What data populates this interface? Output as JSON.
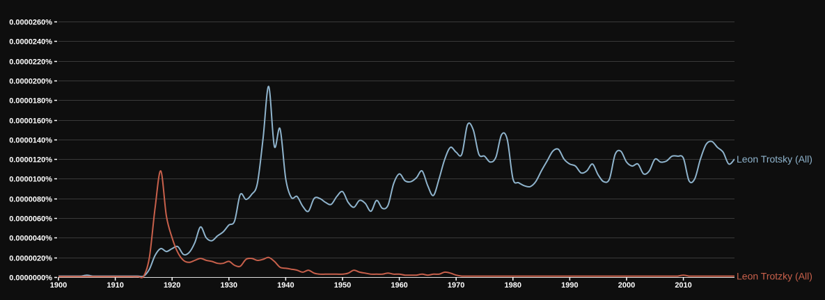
{
  "chart_data": {
    "type": "line",
    "title": "",
    "xlabel": "",
    "ylabel": "",
    "value_unit": "1e-7 percent",
    "xlim": [
      1900,
      2019
    ],
    "ylim": [
      0,
      260
    ],
    "y_tick_values": [
      0,
      20,
      40,
      60,
      80,
      100,
      120,
      140,
      160,
      180,
      200,
      220,
      240,
      260
    ],
    "y_tick_labels": [
      "0.0000000%",
      "0.0000020%",
      "0.0000040%",
      "0.0000060%",
      "0.0000080%",
      "0.0000100%",
      "0.0000120%",
      "0.0000140%",
      "0.0000160%",
      "0.0000180%",
      "0.0000200%",
      "0.0000220%",
      "0.0000240%",
      "0.0000260%"
    ],
    "x_tick_labels": [
      "1900",
      "1910",
      "1920",
      "1930",
      "1940",
      "1950",
      "1960",
      "1970",
      "1980",
      "1990",
      "2000",
      "2010"
    ],
    "grid": true,
    "legend_placement": "right-end-of-lines",
    "x_start": 1900,
    "series": [
      {
        "name": "Leon Trotsky (All)",
        "color": "#8fb4cd",
        "values": [
          1,
          1,
          1,
          1,
          1,
          2,
          1,
          1,
          1,
          1,
          1,
          1,
          1,
          1,
          1,
          1,
          8,
          22,
          29,
          26,
          29,
          31,
          23,
          25,
          35,
          51,
          40,
          37,
          42,
          46,
          53,
          57,
          84,
          79,
          84,
          95,
          140,
          194,
          133,
          151,
          100,
          81,
          82,
          72,
          67,
          80,
          80,
          76,
          74,
          82,
          87,
          76,
          71,
          78,
          75,
          67,
          78,
          70,
          73,
          95,
          105,
          98,
          97,
          101,
          108,
          93,
          83,
          100,
          120,
          132,
          127,
          125,
          155,
          150,
          125,
          123,
          117,
          122,
          145,
          140,
          100,
          96,
          93,
          92,
          97,
          108,
          118,
          128,
          130,
          120,
          115,
          113,
          106,
          108,
          115,
          104,
          97,
          100,
          125,
          128,
          117,
          113,
          115,
          105,
          108,
          120,
          117,
          118,
          123,
          123,
          121,
          98,
          100,
          120,
          135,
          138,
          132,
          127,
          115,
          120
        ]
      },
      {
        "name": "Leon Trotzky (All)",
        "color": "#c8604b",
        "values": [
          0.5,
          0.5,
          0.5,
          0.5,
          0.5,
          0.5,
          0.5,
          0.5,
          0.5,
          0.5,
          0.5,
          0.5,
          0.5,
          0.5,
          0.5,
          1,
          20,
          70,
          108,
          62,
          40,
          25,
          17,
          15,
          17,
          19,
          17,
          16,
          14,
          14,
          16,
          12,
          11,
          18,
          19,
          17,
          18,
          20,
          16,
          10,
          9,
          8,
          7,
          5,
          7,
          4,
          3,
          3,
          3,
          3,
          3,
          4,
          7,
          5,
          4,
          3,
          3,
          3,
          4,
          3,
          3,
          2,
          2,
          2,
          3,
          2,
          3,
          3,
          5,
          4,
          2,
          1,
          1,
          1,
          1,
          1,
          1,
          1,
          1,
          1,
          1,
          1,
          1,
          1,
          1,
          1,
          1,
          1,
          1,
          1,
          1,
          1,
          1,
          1,
          1,
          1,
          1,
          1,
          1,
          1,
          1,
          1,
          1,
          1,
          1,
          1,
          1,
          1,
          1,
          1,
          2,
          1,
          1,
          1,
          1,
          1,
          1,
          1,
          1,
          1
        ]
      }
    ]
  }
}
